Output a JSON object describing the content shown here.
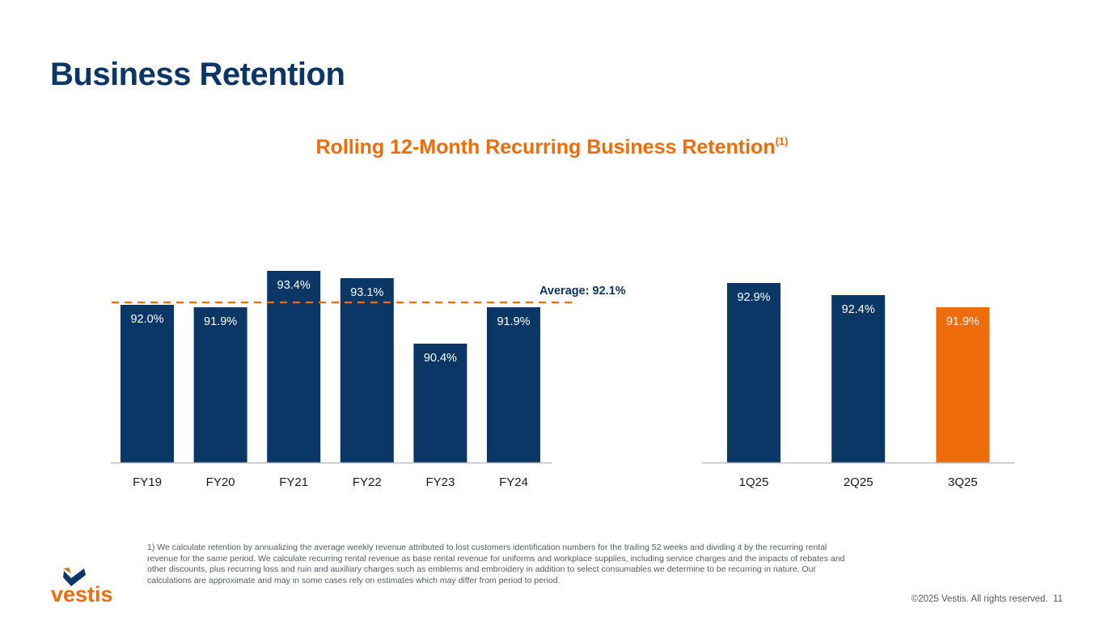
{
  "page": {
    "title": "Business Retention",
    "footnote": "1) We calculate retention by annualizing the average weekly revenue attributed to lost customers identification numbers for the trailing 52 weeks and dividing it by the recurring rental revenue for the same period. We calculate recurring rental revenue as base rental revenue for uniforms and workplace supplies, including service charges and the impacts of rebates and other discounts, plus recurring loss and ruin and auxiliary charges such as emblems and embroidery in addition to select consumables we determine to be recurring in nature. Our calculations are approximate and may in some cases rely on estimates which may differ from period to period.",
    "copyright": "©2025 Vestis. All rights reserved.",
    "page_number": "11",
    "logo_text": "vestis"
  },
  "colors": {
    "navy": "#0b3766",
    "orange": "#ee6c09",
    "axis": "#bdbdbd",
    "label": "#1a1a1a"
  },
  "chart_title": {
    "text": "Rolling 12-Month Recurring Business Retention",
    "superscript": "(1)"
  },
  "chart_data": [
    {
      "type": "bar",
      "title": "Rolling 12-Month Recurring Business Retention",
      "categories": [
        "FY19",
        "FY20",
        "FY21",
        "FY22",
        "FY23",
        "FY24"
      ],
      "values": [
        92.0,
        91.9,
        93.4,
        93.1,
        90.4,
        91.9
      ],
      "data_labels": [
        "92.0%",
        "91.9%",
        "93.4%",
        "93.1%",
        "90.4%",
        "91.9%"
      ],
      "average": 92.1,
      "average_label": "Average: 92.1%",
      "ylim": [
        85.5,
        93.9
      ],
      "xlabel": "",
      "ylabel": ""
    },
    {
      "type": "bar",
      "categories": [
        "1Q25",
        "2Q25",
        "3Q25"
      ],
      "values": [
        92.9,
        92.4,
        91.9
      ],
      "data_labels": [
        "92.9%",
        "92.4%",
        "91.9%"
      ],
      "highlight": "3Q25",
      "ylim": [
        85.5,
        93.9
      ],
      "xlabel": "",
      "ylabel": ""
    }
  ]
}
